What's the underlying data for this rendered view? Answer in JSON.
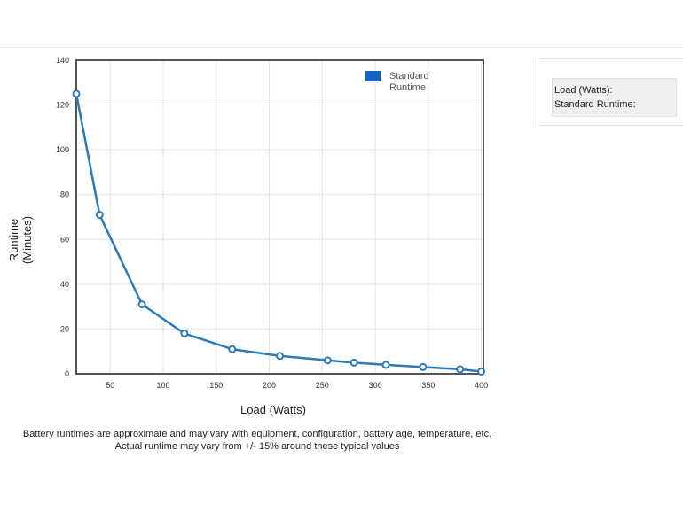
{
  "chart_data": {
    "type": "line",
    "xlabel": "Load (Watts)",
    "ylabel": "Runtime (Minutes)",
    "ylabel_lines": [
      "Runtime",
      "(Minutes)"
    ],
    "xlim": [
      18,
      402
    ],
    "ylim": [
      0,
      140
    ],
    "x_ticks": [
      50,
      100,
      150,
      200,
      250,
      300,
      350,
      400
    ],
    "y_ticks": [
      0,
      20,
      40,
      60,
      80,
      100,
      120,
      140
    ],
    "grid": true,
    "legend_position": "top-right",
    "series": [
      {
        "name": "Standard Runtime",
        "name_lines": [
          "Standard",
          "Runtime"
        ],
        "color": "#2a7ab9",
        "x": [
          18,
          40,
          80,
          120,
          165,
          210,
          255,
          280,
          310,
          345,
          380,
          400
        ],
        "y": [
          125,
          71,
          31,
          18,
          11,
          8,
          6,
          5,
          4,
          3,
          2,
          1
        ]
      }
    ]
  },
  "legend_swatch_color": "#1565c0",
  "info_panel": {
    "load_label": "Load (Watts):",
    "runtime_label": "Standard Runtime:"
  },
  "footnote": {
    "line1": "Battery runtimes are approximate and may vary with equipment, configuration, battery age, temperature, etc.",
    "line2": "Actual runtime may vary from +/- 15% around these typical values"
  }
}
